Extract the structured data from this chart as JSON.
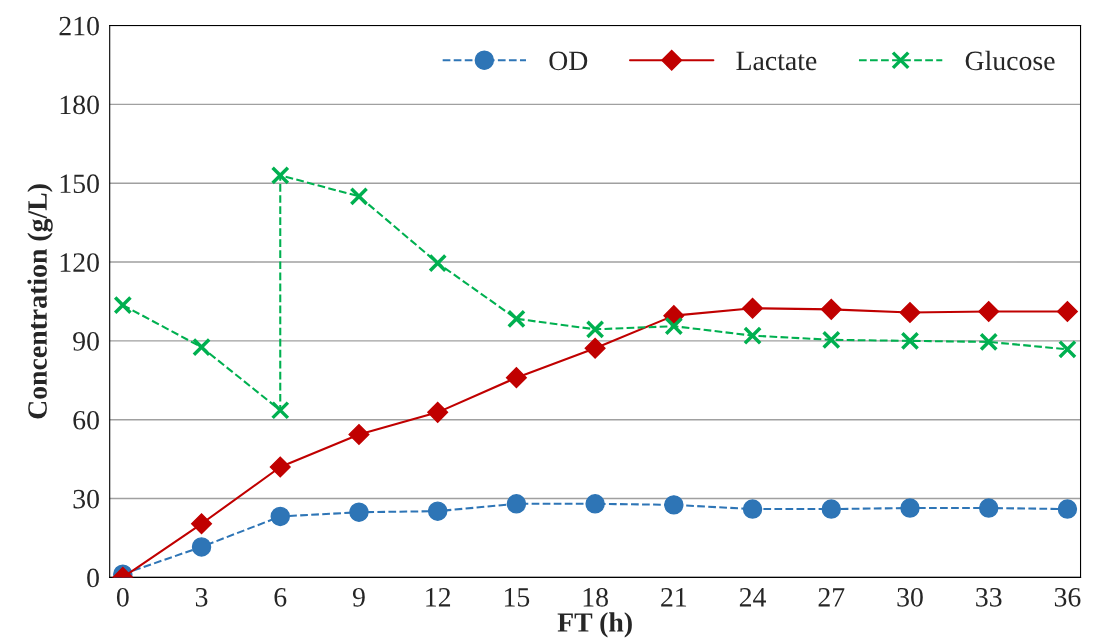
{
  "chart_data": {
    "type": "line",
    "xlabel": "FT (h)",
    "ylabel": "Concentration (g/L)",
    "x": [
      0,
      3,
      6,
      9,
      12,
      15,
      18,
      21,
      24,
      27,
      30,
      33,
      36
    ],
    "series": [
      {
        "name": "OD",
        "color": "#2e75b6",
        "marker": "circle",
        "line_style": "dashed",
        "values": [
          1.2,
          11.6,
          23.2,
          24.8,
          25.2,
          28,
          28,
          27.6,
          26,
          26,
          26.4,
          26.4,
          26
        ]
      },
      {
        "name": "Lactate",
        "color": "#c00000",
        "marker": "diamond",
        "line_style": "solid",
        "values": [
          0,
          20.4,
          42,
          54.4,
          62.8,
          76,
          87.2,
          99.6,
          102.4,
          102,
          100.8,
          101.2,
          101.2
        ]
      },
      {
        "name": "Glucose",
        "color": "#00b050",
        "marker": "cross",
        "line_style": "dashed",
        "x": [
          0,
          3,
          6,
          6,
          9,
          12,
          15,
          18,
          21,
          24,
          27,
          30,
          33,
          36
        ],
        "values": [
          103.6,
          87.6,
          63.6,
          153,
          145,
          119.6,
          98.4,
          94.4,
          95.6,
          92,
          90.4,
          90,
          89.6,
          86.8
        ]
      }
    ],
    "xlim": [
      -0.5,
      36.5
    ],
    "xticks": [
      0,
      3,
      6,
      9,
      12,
      15,
      18,
      21,
      24,
      27,
      30,
      33,
      36
    ],
    "ylim": [
      0,
      210
    ],
    "yticks": [
      0,
      30,
      60,
      90,
      120,
      150,
      180,
      210
    ],
    "grid": "y",
    "legend": "top right"
  }
}
